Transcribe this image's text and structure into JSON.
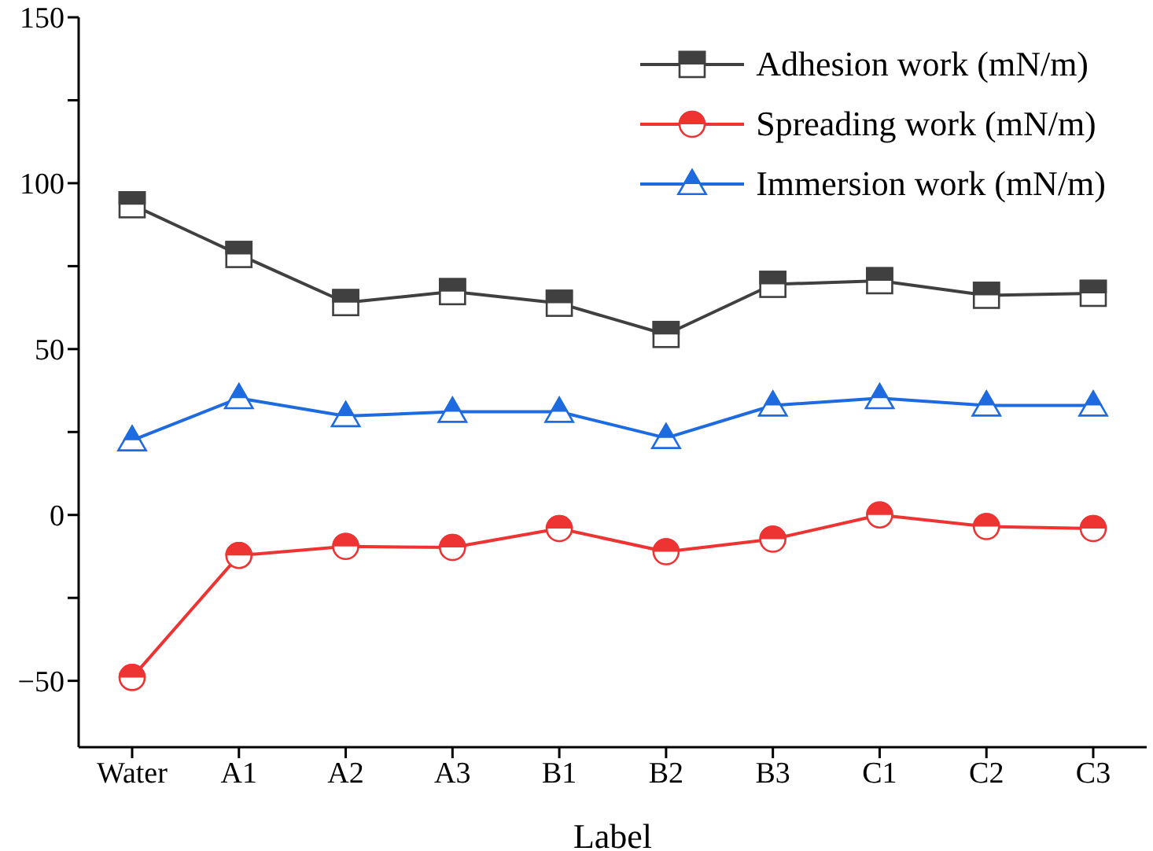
{
  "chart_data": {
    "type": "line",
    "xlabel": "Label",
    "categories": [
      "Water",
      "A1",
      "A2",
      "A3",
      "B1",
      "B2",
      "B3",
      "C1",
      "C2",
      "C3"
    ],
    "series": [
      {
        "name": "Adhesion work (mN/m)",
        "color": "#404040",
        "marker": "square",
        "values": [
          93.5,
          78.5,
          64,
          67.3,
          63.8,
          54.4,
          69.5,
          70.6,
          66.2,
          66.8
        ]
      },
      {
        "name": "Spreading work (mN/m)",
        "color": "#ee3333",
        "marker": "circle",
        "values": [
          -49,
          -12.2,
          -9.5,
          -9.8,
          -4.1,
          -11.1,
          -7.3,
          0,
          -3.5,
          -4.1
        ]
      },
      {
        "name": "Immersion work (mN/m)",
        "color": "#1e6be0",
        "marker": "triangle",
        "values": [
          22.5,
          35.2,
          29.8,
          31.1,
          31.1,
          23.2,
          33,
          35.2,
          33,
          33
        ]
      }
    ],
    "ylim": [
      -70,
      150
    ],
    "yticks": [
      -50,
      {
        "value": -25,
        "label": null
      },
      0,
      {
        "value": 25,
        "label": null
      },
      50,
      {
        "value": 75,
        "label": null
      },
      100,
      {
        "value": 125,
        "label": null
      },
      150
    ],
    "grid": false,
    "legend": "top right",
    "line_style": "solid"
  }
}
